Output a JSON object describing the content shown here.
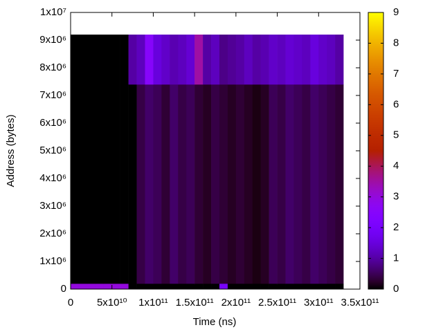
{
  "chart_data": {
    "type": "heatmap",
    "xlabel": "Time (ns)",
    "ylabel": "Address (bytes)",
    "x_bins": [
      0,
      10000000000,
      20000000000,
      30000000000,
      40000000000,
      50000000000,
      60000000000,
      70000000000,
      80000000000,
      90000000000,
      100000000000,
      110000000000,
      120000000000,
      130000000000,
      140000000000,
      150000000000,
      160000000000,
      170000000000,
      180000000000,
      190000000000,
      200000000000,
      210000000000,
      220000000000,
      230000000000,
      240000000000,
      250000000000,
      260000000000,
      270000000000,
      280000000000,
      290000000000,
      300000000000,
      310000000000,
      320000000000,
      330000000000
    ],
    "y_bins": [
      0,
      200000,
      7400000,
      9200000
    ],
    "values": [
      [
        3,
        3,
        3,
        3,
        3,
        3,
        3,
        0,
        0,
        0,
        0,
        0,
        0,
        0,
        0,
        0,
        0,
        0,
        2,
        0,
        0,
        0,
        0,
        0,
        0,
        0,
        0,
        0,
        0,
        0,
        0,
        0,
        0
      ],
      [
        0,
        0,
        0,
        0,
        0,
        0,
        0,
        0,
        0.4,
        0.6,
        0.5,
        0.3,
        0.6,
        0.4,
        0.5,
        0.3,
        0.2,
        0.4,
        0.3,
        0.2,
        0.3,
        0.2,
        0.1,
        0.2,
        0.5,
        0.4,
        0.6,
        0.5,
        0.4,
        0.6,
        0.5,
        0.4,
        0.3
      ],
      [
        0,
        0,
        0,
        0,
        0,
        0,
        0,
        1.0,
        1.2,
        2.5,
        1.5,
        1.3,
        1.1,
        1.2,
        1.4,
        3.5,
        1.0,
        1.2,
        0.8,
        0.9,
        1.0,
        1.2,
        1.0,
        1.1,
        1.3,
        1.2,
        1.4,
        1.3,
        1.2,
        1.5,
        1.3,
        1.2,
        1.0
      ]
    ],
    "xlim": [
      0,
      350000000000
    ],
    "xticks": [
      0,
      {
        "value": 50000000000,
        "label": "5x10¹⁰"
      },
      {
        "value": 100000000000,
        "label": "1x10¹¹"
      },
      {
        "value": 150000000000,
        "label": "1.5x10¹¹"
      },
      {
        "value": 200000000000,
        "label": "2x10¹¹"
      },
      {
        "value": 250000000000,
        "label": "2.5x10¹¹"
      },
      {
        "value": 300000000000,
        "label": "3x10¹¹"
      },
      {
        "value": 350000000000,
        "label": "3.5x10¹¹"
      }
    ],
    "ylim": [
      0,
      10000000
    ],
    "yticks": [
      0,
      {
        "value": 1000000,
        "label": "1x10⁶"
      },
      {
        "value": 2000000,
        "label": "2x10⁶"
      },
      {
        "value": 3000000,
        "label": "3x10⁶"
      },
      {
        "value": 4000000,
        "label": "4x10⁶"
      },
      {
        "value": 5000000,
        "label": "5x10⁶"
      },
      {
        "value": 6000000,
        "label": "6x10⁶"
      },
      {
        "value": 7000000,
        "label": "7x10⁶"
      },
      {
        "value": 8000000,
        "label": "8x10⁶"
      },
      {
        "value": 9000000,
        "label": "9x10⁶"
      },
      {
        "value": 10000000,
        "label": "1x10⁷"
      }
    ],
    "cblim": [
      0,
      9
    ],
    "cbticks": [
      0,
      1,
      2,
      3,
      4,
      5,
      6,
      7,
      8,
      9
    ]
  }
}
